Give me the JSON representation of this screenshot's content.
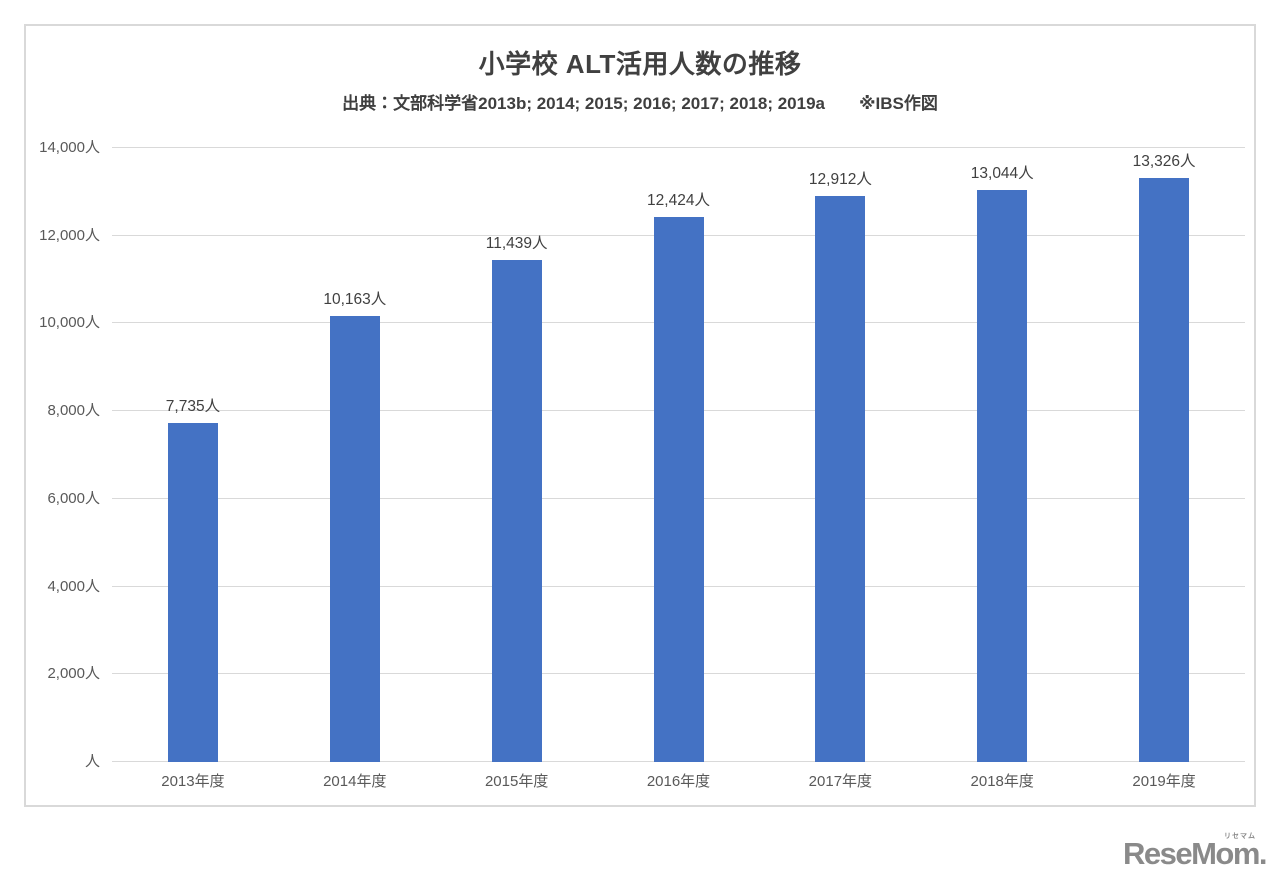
{
  "chart_data": {
    "type": "bar",
    "title": "小学校 ALT活用人数の推移",
    "subtitle": "出典：文部科学省2013b; 2014; 2015; 2016; 2017; 2018; 2019a　　※IBS作図",
    "categories": [
      "2013年度",
      "2014年度",
      "2015年度",
      "2016年度",
      "2017年度",
      "2018年度",
      "2019年度"
    ],
    "values": [
      7735,
      10163,
      11439,
      12424,
      12912,
      13044,
      13326
    ],
    "data_labels": [
      "7,735人",
      "10,163人",
      "11,439人",
      "12,424人",
      "12,912人",
      "13,044人",
      "13,326人"
    ],
    "y_ticks": [
      "人",
      "2,000人",
      "4,000人",
      "6,000人",
      "8,000人",
      "10,000人",
      "12,000人",
      "14,000人"
    ],
    "ylim": [
      0,
      14000
    ],
    "grid": true,
    "legend": "none",
    "bar_color": "#4472C4",
    "gridline_color": "#d9d9d9"
  },
  "watermark": {
    "text": "ReseMom.",
    "ruby": "リセマム",
    "color": "#8a8a8a"
  }
}
